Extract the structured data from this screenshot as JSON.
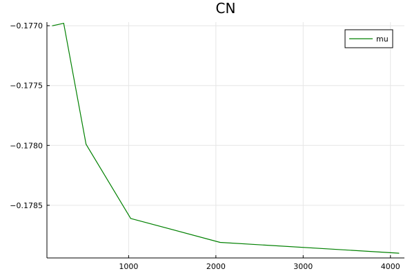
{
  "chart_data": {
    "type": "line",
    "title": "CN",
    "xlabel": "",
    "ylabel": "",
    "xlim": [
      64,
      4160
    ],
    "ylim": [
      -0.17894,
      -0.17697
    ],
    "x_ticks": [
      {
        "value": 1000,
        "label": "1000"
      },
      {
        "value": 2000,
        "label": "2000"
      },
      {
        "value": 3000,
        "label": "3000"
      },
      {
        "value": 4000,
        "label": "4000"
      }
    ],
    "y_ticks": [
      {
        "value": -0.177,
        "label": "−0.1770"
      },
      {
        "value": -0.1775,
        "label": "−0.1775"
      },
      {
        "value": -0.178,
        "label": "−0.1780"
      },
      {
        "value": -0.1785,
        "label": "−0.1785"
      }
    ],
    "grid": true,
    "legend_position": "top-right",
    "series": [
      {
        "name": "mu",
        "color": "#008000",
        "x": [
          128,
          256,
          512,
          1024,
          2048,
          4096
        ],
        "y": [
          -0.177,
          -0.17698,
          -0.17799,
          -0.17861,
          -0.17881,
          -0.1789
        ]
      }
    ]
  }
}
